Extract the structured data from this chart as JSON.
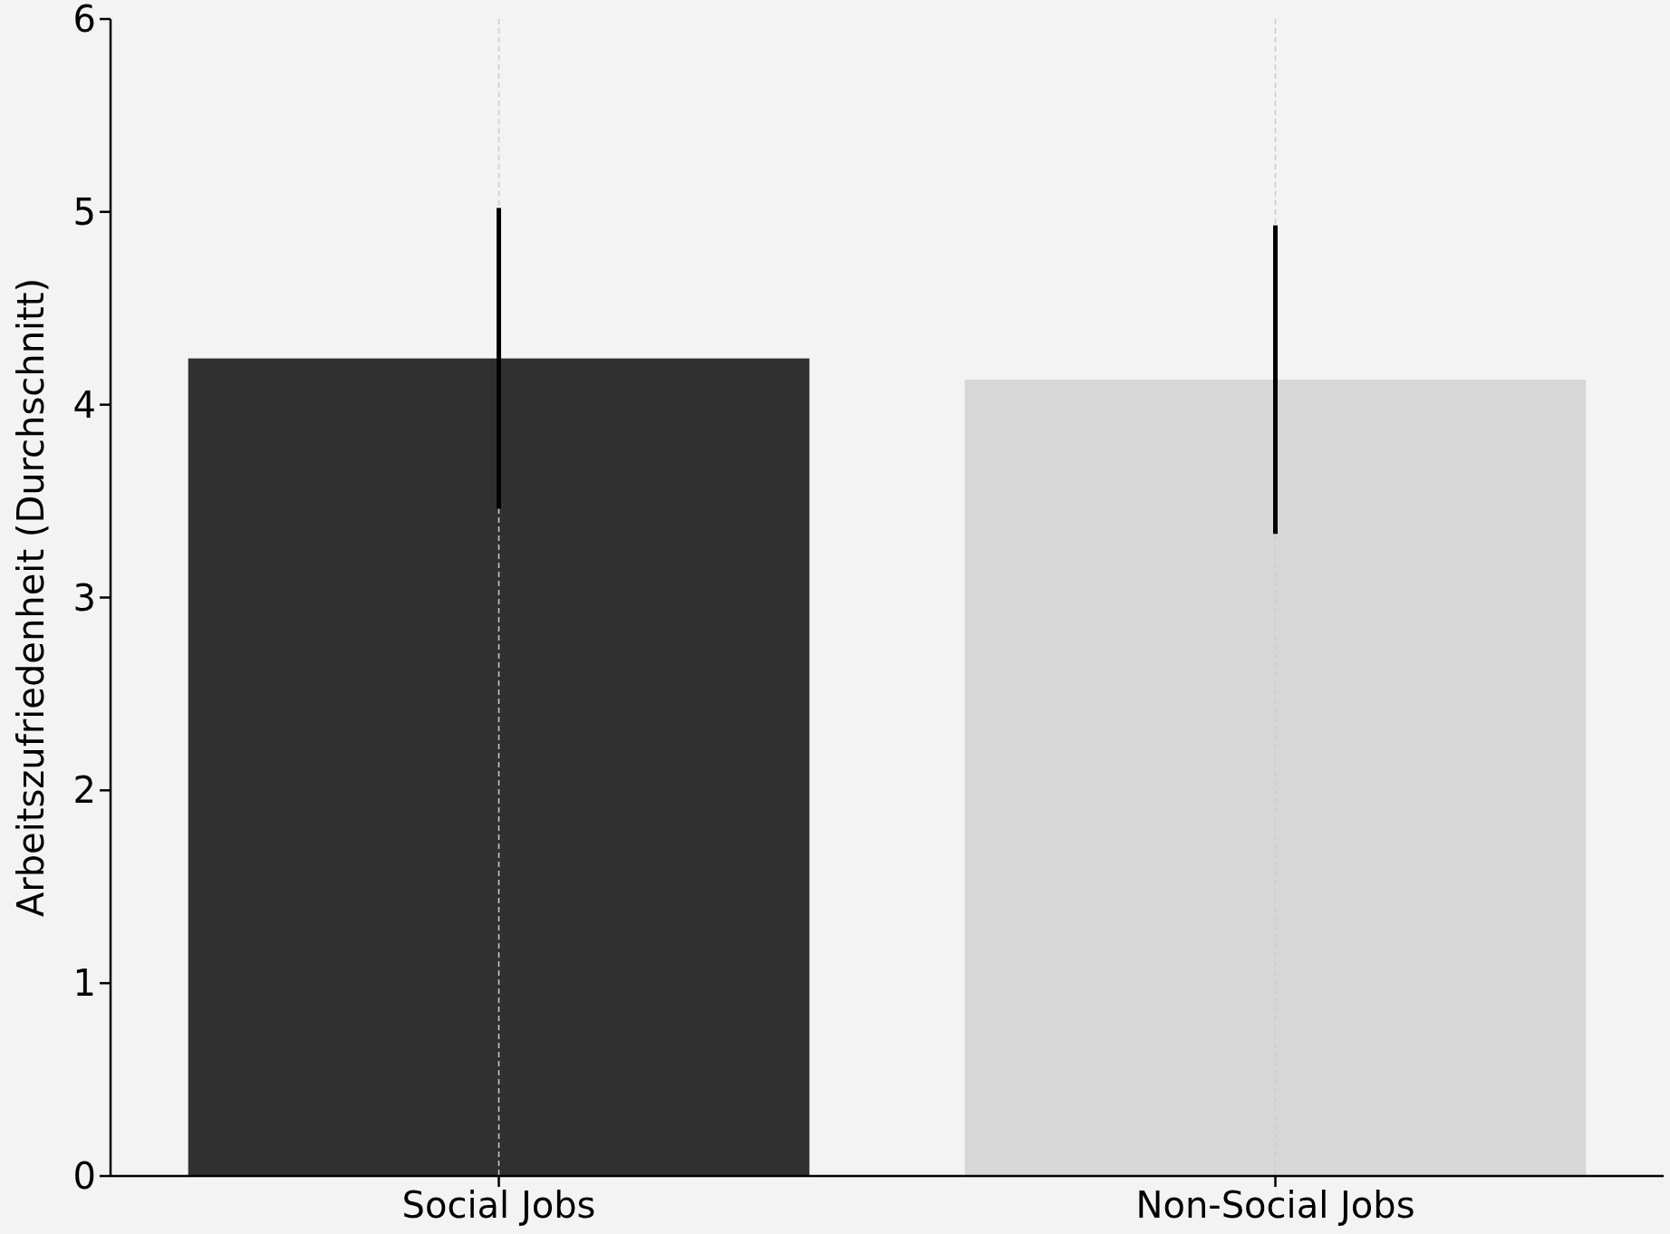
{
  "chart_data": {
    "type": "bar",
    "ylabel": "Arbeitszufriedenheit (Durchschnitt)",
    "categories": [
      "Social Jobs",
      "Non-Social Jobs"
    ],
    "values": [
      4.24,
      4.13
    ],
    "colors": [
      "#303030",
      "#d7d7d7"
    ],
    "errors": [
      0.78,
      0.8
    ],
    "ylim": [
      0,
      6
    ],
    "yticks": [
      0,
      1,
      2,
      3,
      4,
      5,
      6
    ],
    "grid": "x"
  }
}
